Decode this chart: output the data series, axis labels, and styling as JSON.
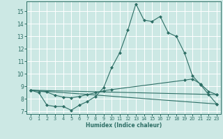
{
  "xlabel": "Humidex (Indice chaleur)",
  "bg_color": "#cce8e4",
  "line_color": "#2d6e65",
  "grid_color": "#ffffff",
  "xlim": [
    -0.5,
    23.5
  ],
  "ylim": [
    6.8,
    15.8
  ],
  "yticks": [
    7,
    8,
    9,
    10,
    11,
    12,
    13,
    14,
    15
  ],
  "xticks": [
    0,
    1,
    2,
    3,
    4,
    5,
    6,
    7,
    8,
    9,
    10,
    11,
    12,
    13,
    14,
    15,
    16,
    17,
    18,
    19,
    20,
    21,
    22,
    23
  ],
  "series": [
    {
      "x": [
        0,
        1,
        2,
        3,
        4,
        5,
        6,
        7,
        8,
        9,
        10,
        11,
        12,
        13,
        14,
        15,
        16,
        17,
        18,
        19,
        20,
        21,
        22,
        23
      ],
      "y": [
        8.7,
        8.5,
        7.5,
        7.4,
        7.4,
        7.1,
        7.5,
        7.8,
        8.2,
        8.9,
        10.5,
        11.7,
        13.5,
        15.6,
        14.3,
        14.2,
        14.6,
        13.3,
        13.0,
        11.7,
        9.85,
        9.15,
        8.35,
        7.6
      ]
    },
    {
      "x": [
        0,
        2,
        3,
        4,
        5,
        6,
        7,
        8,
        9,
        10,
        19,
        20,
        21,
        22,
        23
      ],
      "y": [
        8.7,
        8.55,
        8.3,
        8.15,
        8.1,
        8.2,
        8.35,
        8.5,
        8.65,
        8.75,
        9.5,
        9.6,
        9.2,
        8.6,
        8.35
      ]
    },
    {
      "x": [
        0,
        23
      ],
      "y": [
        8.7,
        8.35
      ]
    },
    {
      "x": [
        0,
        23
      ],
      "y": [
        8.7,
        7.6
      ]
    }
  ]
}
